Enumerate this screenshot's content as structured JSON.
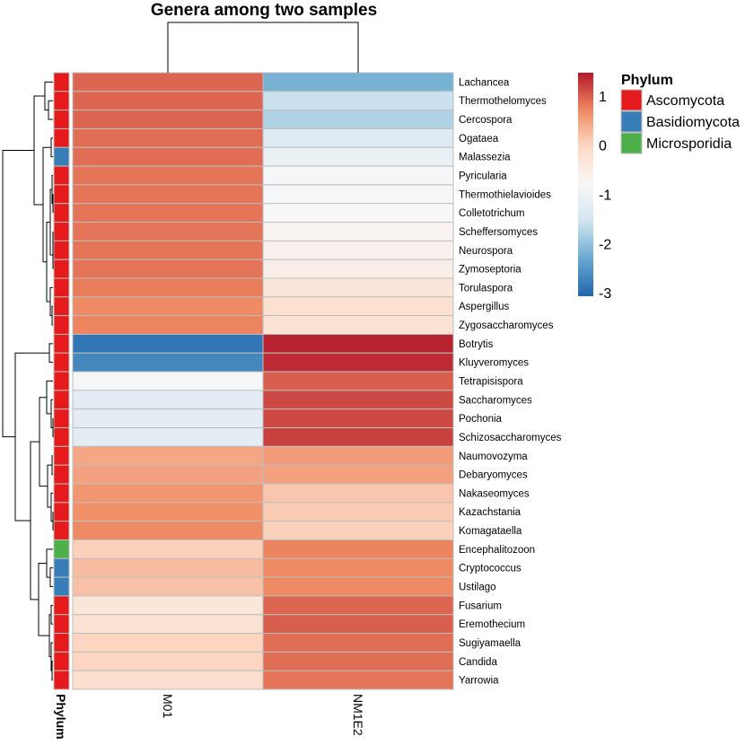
{
  "chart_data": {
    "type": "heatmap",
    "title": "Genera among two samples",
    "columns": [
      "M01",
      "NM1E2"
    ],
    "rows": [
      "Lachancea",
      "Thermothelomyces",
      "Cercospora",
      "Ogataea",
      "Malassezia",
      "Pyricularia",
      "Thermothielavioides",
      "Colletotrichum",
      "Scheffersomyces",
      "Neurospora",
      "Zymoseptoria",
      "Torulaspora",
      "Aspergillus",
      "Zygosaccharomyces",
      "Botrytis",
      "Kluyveromyces",
      "Tetrapisispora",
      "Saccharomyces",
      "Pochonia",
      "Schizosaccharomyces",
      "Naumovozyma",
      "Debaryomyces",
      "Nakaseomyces",
      "Kazachstania",
      "Komagataella",
      "Encephalitozoon",
      "Cryptococcus",
      "Ustilago",
      "Fusarium",
      "Eremothecium",
      "Sugiyamaella",
      "Candida",
      "Yarrowia"
    ],
    "values": [
      [
        0.95,
        -2.2
      ],
      [
        0.95,
        -1.6
      ],
      [
        0.95,
        -1.8
      ],
      [
        0.9,
        -1.3
      ],
      [
        0.9,
        -1.1
      ],
      [
        0.85,
        -0.85
      ],
      [
        0.85,
        -0.85
      ],
      [
        0.85,
        -0.8
      ],
      [
        0.85,
        -0.7
      ],
      [
        0.85,
        -0.65
      ],
      [
        0.85,
        -0.55
      ],
      [
        0.8,
        -0.35
      ],
      [
        0.7,
        -0.2
      ],
      [
        0.75,
        -0.25
      ],
      [
        -2.9,
        1.4
      ],
      [
        -2.7,
        1.35
      ],
      [
        -0.85,
        1.0
      ],
      [
        -1.2,
        1.15
      ],
      [
        -1.2,
        1.15
      ],
      [
        -1.2,
        1.2
      ],
      [
        0.45,
        0.55
      ],
      [
        0.5,
        0.5
      ],
      [
        0.6,
        0.15
      ],
      [
        0.65,
        0.1
      ],
      [
        0.7,
        0.05
      ],
      [
        0.05,
        0.75
      ],
      [
        0.25,
        0.7
      ],
      [
        0.2,
        0.7
      ],
      [
        -0.35,
        0.95
      ],
      [
        -0.25,
        1.0
      ],
      [
        0.0,
        0.9
      ],
      [
        0.0,
        0.9
      ],
      [
        -0.15,
        0.85
      ]
    ],
    "row_annotation": {
      "title": "Phylum",
      "values": [
        "Ascomycota",
        "Ascomycota",
        "Ascomycota",
        "Ascomycota",
        "Basidiomycota",
        "Ascomycota",
        "Ascomycota",
        "Ascomycota",
        "Ascomycota",
        "Ascomycota",
        "Ascomycota",
        "Ascomycota",
        "Ascomycota",
        "Ascomycota",
        "Ascomycota",
        "Ascomycota",
        "Ascomycota",
        "Ascomycota",
        "Ascomycota",
        "Ascomycota",
        "Ascomycota",
        "Ascomycota",
        "Ascomycota",
        "Ascomycota",
        "Ascomycota",
        "Microsporidia",
        "Basidiomycota",
        "Basidiomycota",
        "Ascomycota",
        "Ascomycota",
        "Ascomycota",
        "Ascomycota",
        "Ascomycota"
      ],
      "legend": [
        {
          "label": "Ascomycota",
          "color": "#E41A1C"
        },
        {
          "label": "Basidiomycota",
          "color": "#377EB8"
        },
        {
          "label": "Microsporidia",
          "color": "#4DAF4A"
        }
      ]
    },
    "color_scale": {
      "range": [
        -3.07,
        1.47
      ],
      "ticks": [
        "1",
        "0",
        "-1",
        "-2",
        "-3"
      ],
      "tick_values": [
        1,
        0,
        -1,
        -2,
        -3
      ],
      "colors": [
        "#2166AC",
        "#67A9CF",
        "#D1E5F0",
        "#F7F7F7",
        "#FDDBC7",
        "#EF8A62",
        "#B2182B"
      ]
    },
    "row_dendrogram": true,
    "col_dendrogram": true
  }
}
